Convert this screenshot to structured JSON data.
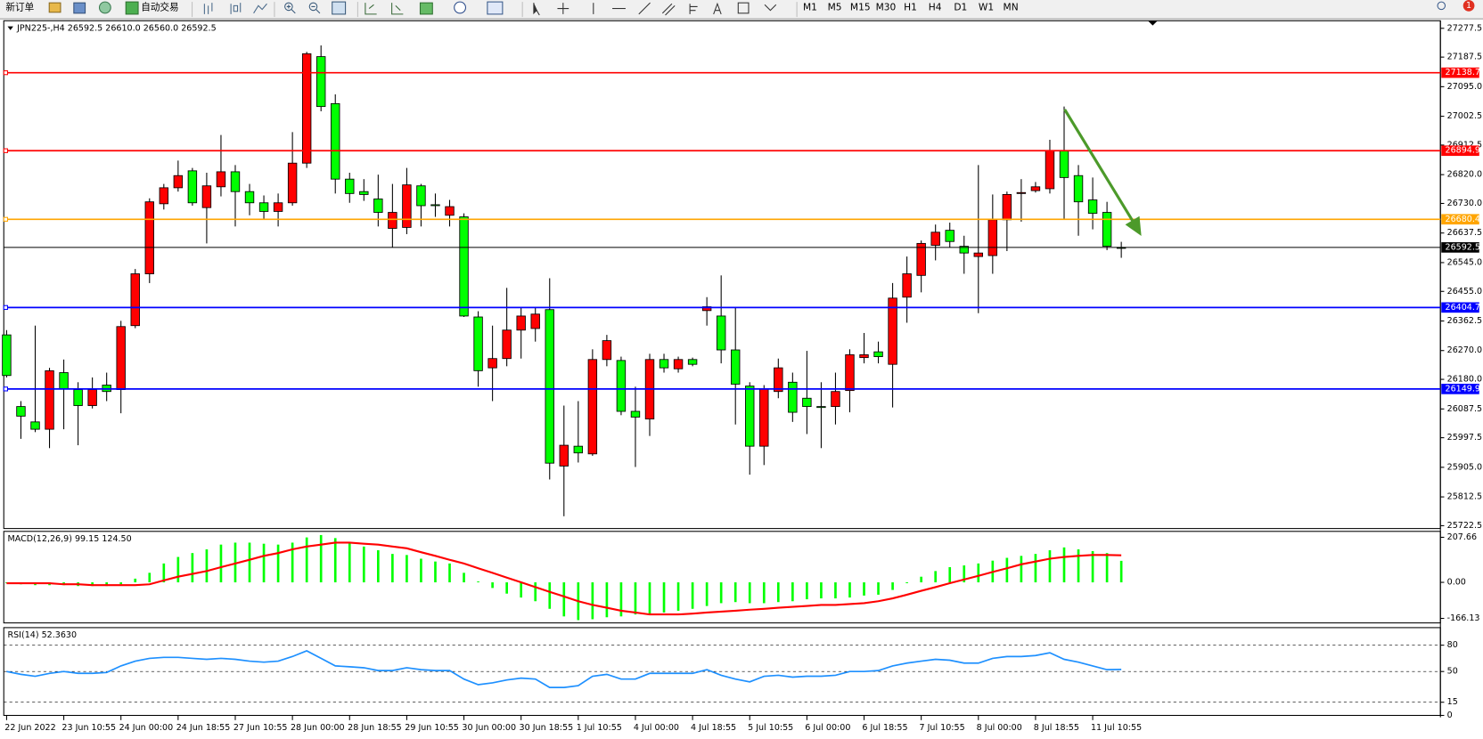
{
  "toolbar": {
    "new_order": "新订单",
    "auto_trade": "自动交易",
    "timeframes": [
      "M1",
      "M5",
      "M15",
      "M30",
      "H1",
      "H4",
      "D1",
      "W1",
      "MN"
    ],
    "badge": "1"
  },
  "chart_data": [
    {
      "type": "candlestick",
      "title": "JPN225-,H4  26592.5 26610.0 26560.0 26592.5",
      "categories": [
        "22 Jun 2022",
        null,
        null,
        null,
        "23 Jun 10:55",
        null,
        null,
        null,
        "24 Jun 00:00",
        null,
        null,
        null,
        "24 Jun 18:55",
        null,
        null,
        null,
        "27 Jun 10:55",
        null,
        null,
        null,
        "28 Jun 00:00",
        null,
        null,
        null,
        "28 Jun 18:55",
        null,
        null,
        null,
        "29 Jun 10:55",
        null,
        null,
        null,
        "30 Jun 00:00",
        null,
        null,
        null,
        "30 Jun 18:55",
        null,
        null,
        null,
        "1 Jul 10:55",
        null,
        null,
        null,
        "4 Jul 00:00",
        null,
        null,
        null,
        "4 Jul 18:55",
        null,
        null,
        null,
        "5 Jul 10:55",
        null,
        null,
        null,
        "6 Jul 00:00",
        null,
        null,
        null,
        "6 Jul 18:55",
        null,
        null,
        null,
        "7 Jul 10:55",
        null,
        null,
        null,
        "8 Jul 00:00",
        null,
        null,
        null,
        "8 Jul 18:55",
        null,
        null,
        null,
        "11 Jul 10:55",
        null,
        null
      ],
      "open": [
        26319,
        26095,
        26047,
        26024,
        26201,
        26148,
        26098,
        26162,
        26148,
        26348,
        26510,
        26729,
        26779,
        26832,
        26717,
        26782,
        26829,
        26767,
        26732,
        26705,
        26732,
        26856,
        27189,
        27042,
        26806,
        26767,
        26744,
        26652,
        26655,
        26785,
        26726,
        26693,
        26688,
        26375,
        26216,
        26245,
        26334,
        26339,
        26398,
        25909,
        25971,
        25947,
        26242,
        26239,
        26080,
        26056,
        26242,
        26213,
        26242,
        26395,
        26378,
        26272,
        26159,
        25971,
        26142,
        26171,
        26121,
        26095,
        26095,
        26145,
        26248,
        26266,
        26227,
        26437,
        26505,
        26599,
        26646,
        26596,
        26564,
        26567,
        26679,
        26761,
        26770,
        26776,
        26894,
        26817,
        26741,
        26702,
        26592.5
      ],
      "high": [
        26334,
        26112,
        26348,
        26216,
        26242,
        26171,
        26186,
        26201,
        26363,
        26525,
        26746,
        26791,
        26864,
        26841,
        26826,
        26944,
        26850,
        26791,
        26755,
        26761,
        26953,
        27204,
        27224,
        27071,
        26826,
        26806,
        26820,
        26791,
        26841,
        26791,
        26761,
        26741,
        26699,
        26393,
        26348,
        26466,
        26407,
        26407,
        26496,
        26098,
        26112,
        26274,
        26319,
        26251,
        26157,
        26260,
        26260,
        26251,
        26248,
        26437,
        26505,
        26407,
        26171,
        26162,
        26245,
        26201,
        26269,
        26171,
        26201,
        26274,
        26325,
        26298,
        26481,
        26564,
        26614,
        26664,
        26670,
        26629,
        26850,
        26758,
        26767,
        26806,
        26797,
        26929,
        27033,
        26850,
        26811,
        26735,
        26610
      ],
      "low": [
        26186,
        25994,
        26015,
        25965,
        26024,
        25974,
        26089,
        26112,
        26074,
        26340,
        26481,
        26711,
        26767,
        26723,
        26605,
        26752,
        26658,
        26693,
        26682,
        26658,
        26723,
        26841,
        27018,
        26761,
        26732,
        26738,
        26658,
        26593,
        26634,
        26658,
        26688,
        26658,
        26375,
        26157,
        26112,
        26221,
        26245,
        26298,
        25867,
        25752,
        25920,
        25941,
        26221,
        26068,
        25906,
        26003,
        26201,
        26201,
        26221,
        26348,
        26230,
        26039,
        25882,
        25912,
        26121,
        26047,
        26009,
        25965,
        26039,
        26077,
        26230,
        26230,
        26092,
        26357,
        26452,
        26552,
        26593,
        26510,
        26387,
        26510,
        26581,
        26673,
        26764,
        26761,
        26682,
        26629,
        26649,
        26584,
        26560
      ],
      "close": [
        26192,
        26065,
        26024,
        26207,
        26151,
        26098,
        26148,
        26142,
        26345,
        26510,
        26735,
        26779,
        26817,
        26732,
        26785,
        26829,
        26767,
        26732,
        26705,
        26732,
        26856,
        27198,
        27033,
        26806,
        26761,
        26758,
        26702,
        26702,
        26788,
        26723,
        26723,
        26720,
        26378,
        26207,
        26245,
        26334,
        26378,
        26384,
        25918,
        25974,
        25950,
        26242,
        26301,
        26080,
        26062,
        26242,
        26216,
        26242,
        26227,
        26407,
        26272,
        26165,
        25971,
        26151,
        26216,
        26077,
        26095,
        26092,
        26142,
        26257,
        26257,
        26251,
        26434,
        26510,
        26605,
        26640,
        26611,
        26575,
        26575,
        26679,
        26758,
        26764,
        26782,
        26894,
        26811,
        26735,
        26699,
        26596,
        26592.5
      ],
      "up_color": "#ff0000",
      "down_color": "#00ff00",
      "ylim": [
        25713.6,
        27301.1
      ],
      "yticks": [
        27277.5,
        27187.5,
        {
          "value": 27095,
          "label": "27095.0"
        },
        27002.5,
        26912.5,
        {
          "value": 26820,
          "label": "26820.0"
        },
        {
          "value": 26730,
          "label": "26730.0"
        },
        26637.5,
        {
          "value": 26545,
          "label": "26545.0"
        },
        {
          "value": 26455,
          "label": "26455.0"
        },
        26362.5,
        {
          "value": 26270,
          "label": "26270.0"
        },
        {
          "value": 26180,
          "label": "26180.0"
        },
        26087.5,
        25997.5,
        {
          "value": 25905,
          "label": "25905.0"
        },
        25812.5,
        25722.5
      ],
      "levels": [
        {
          "value": 27138.7,
          "color": "#ff0000"
        },
        {
          "value": 26894.9,
          "color": "#ff0000"
        },
        {
          "value": 26680.4,
          "color": "#ffa500"
        },
        {
          "value": 26592.5,
          "color": "#000000"
        },
        {
          "value": 26404.7,
          "color": "#0000ff"
        },
        {
          "value": 26149.9,
          "color": "#0000ff"
        }
      ]
    },
    {
      "type": "macd",
      "title": "MACD(12,26,9) 99.15 124.50",
      "histogram": {
        "color": "#00ff00",
        "values": [
          -4,
          -9,
          -13,
          -13,
          -13,
          -17,
          -17,
          -17,
          -9,
          17,
          44,
          87,
          117,
          135,
          152,
          174,
          183,
          183,
          178,
          174,
          183,
          207,
          218,
          204,
          187,
          165,
          148,
          131,
          126,
          109,
          96,
          87,
          44,
          4,
          -26,
          -52,
          -70,
          -87,
          -122,
          -157,
          -174,
          -170,
          -161,
          -157,
          -148,
          -144,
          -139,
          -131,
          -122,
          -109,
          -96,
          -91,
          -96,
          -96,
          -91,
          -87,
          -78,
          -74,
          -74,
          -70,
          -61,
          -57,
          -35,
          -4,
          26,
          52,
          70,
          78,
          87,
          100,
          113,
          122,
          131,
          148,
          161,
          152,
          144,
          135,
          99.15
        ]
      },
      "signal": {
        "color": "#ff0000",
        "values": [
          -4,
          -4,
          -4,
          -4,
          -9,
          -9,
          -13,
          -13,
          -13,
          -13,
          -9,
          9,
          26,
          39,
          52,
          70,
          87,
          104,
          122,
          135,
          152,
          165,
          174,
          183,
          183,
          178,
          174,
          165,
          157,
          139,
          122,
          104,
          87,
          65,
          44,
          22,
          0,
          -22,
          -44,
          -65,
          -87,
          -104,
          -117,
          -131,
          -139,
          -148,
          -148,
          -148,
          -144,
          -139,
          -135,
          -131,
          -126,
          -122,
          -117,
          -113,
          -109,
          -104,
          -104,
          -100,
          -96,
          -87,
          -74,
          -57,
          -39,
          -22,
          -4,
          13,
          30,
          48,
          65,
          83,
          96,
          109,
          117,
          122,
          126,
          126,
          124.5
        ]
      },
      "ylim": [
        -187,
        235
      ],
      "yticks": [
        207.66,
        {
          "value": 0,
          "label": "0.00"
        },
        -166.13
      ]
    },
    {
      "type": "line",
      "title": "RSI(14) 52.3630",
      "color": "#1e90ff",
      "values": [
        50,
        46.8,
        44.6,
        47.9,
        50,
        47.9,
        47.9,
        48.9,
        56.4,
        61.8,
        65,
        66.1,
        66.1,
        65,
        63.9,
        65,
        63.9,
        61.8,
        60.7,
        61.8,
        67.1,
        73.6,
        65,
        56.4,
        55.4,
        54.3,
        51.1,
        51.1,
        54.3,
        52.1,
        51.1,
        51.1,
        41.4,
        35,
        37.1,
        40.4,
        42.5,
        41.4,
        31.8,
        31.8,
        33.9,
        44.6,
        46.8,
        41.4,
        41.4,
        47.9,
        47.9,
        47.9,
        47.9,
        52.1,
        45.7,
        41.4,
        38.2,
        44.6,
        45.7,
        43.6,
        44.6,
        44.6,
        45.7,
        50,
        50,
        51.1,
        56.4,
        59.6,
        61.8,
        63.9,
        62.9,
        59.6,
        59.6,
        65,
        67.1,
        67.1,
        68.2,
        71.4,
        63.9,
        60.7,
        56.4,
        52.1,
        52.36
      ],
      "ylim": [
        0,
        100
      ],
      "yticks": [
        80,
        50,
        15,
        0
      ],
      "grid": "dashed"
    }
  ]
}
